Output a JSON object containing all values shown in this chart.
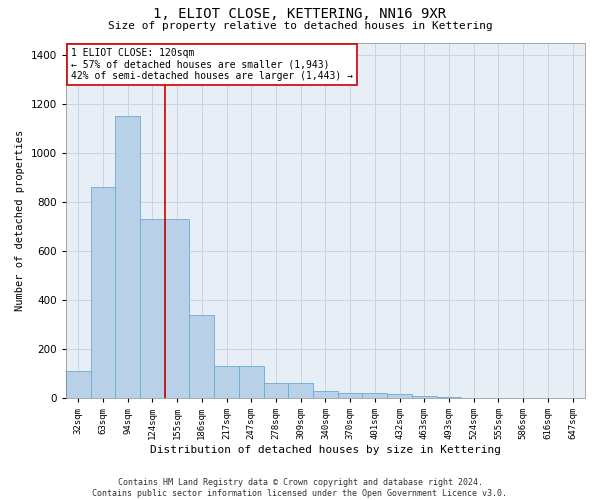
{
  "title": "1, ELIOT CLOSE, KETTERING, NN16 9XR",
  "subtitle": "Size of property relative to detached houses in Kettering",
  "xlabel": "Distribution of detached houses by size in Kettering",
  "ylabel": "Number of detached properties",
  "footer_line1": "Contains HM Land Registry data © Crown copyright and database right 2024.",
  "footer_line2": "Contains public sector information licensed under the Open Government Licence v3.0.",
  "bar_color": "#b8d0e8",
  "bar_edge_color": "#6aaad4",
  "grid_color": "#c8d4e4",
  "background_color": "#e8eef6",
  "vline_color": "#cc0000",
  "vline_index": 3.5,
  "annotation_text": "1 ELIOT CLOSE: 120sqm\n← 57% of detached houses are smaller (1,943)\n42% of semi-detached houses are larger (1,443) →",
  "annotation_box_color": "#ffffff",
  "annotation_box_edge": "#cc0000",
  "categories": [
    "32sqm",
    "63sqm",
    "94sqm",
    "124sqm",
    "155sqm",
    "186sqm",
    "217sqm",
    "247sqm",
    "278sqm",
    "309sqm",
    "340sqm",
    "370sqm",
    "401sqm",
    "432sqm",
    "463sqm",
    "493sqm",
    "524sqm",
    "555sqm",
    "586sqm",
    "616sqm",
    "647sqm"
  ],
  "values": [
    110,
    860,
    1150,
    730,
    730,
    340,
    130,
    130,
    60,
    60,
    30,
    20,
    20,
    15,
    10,
    5,
    2,
    1,
    0,
    0,
    0
  ],
  "ylim": [
    0,
    1450
  ],
  "yticks": [
    0,
    200,
    400,
    600,
    800,
    1000,
    1200,
    1400
  ]
}
